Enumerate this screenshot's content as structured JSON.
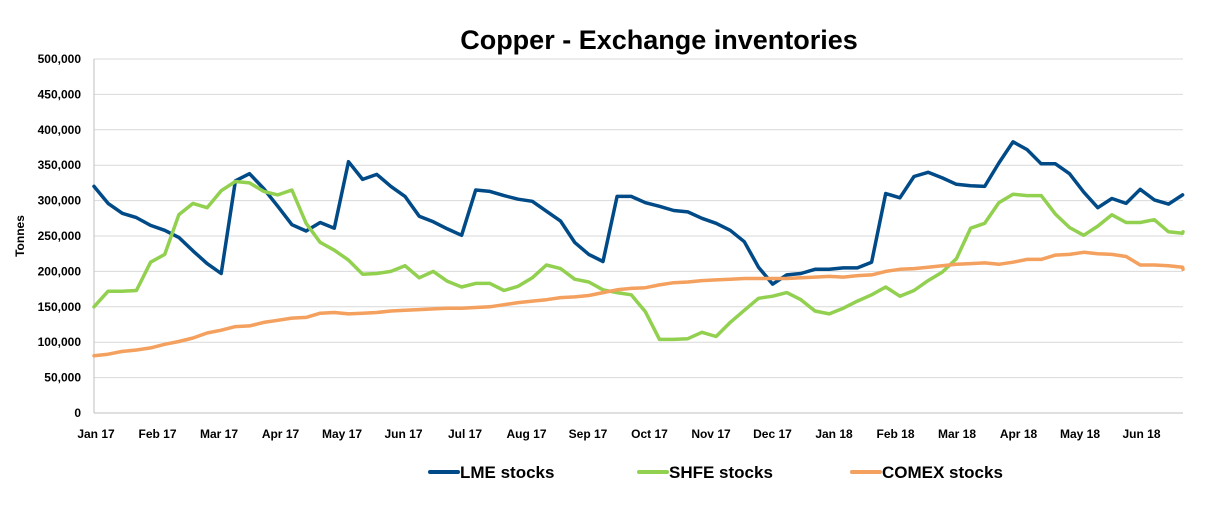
{
  "chart_data": {
    "type": "line",
    "title": "Copper - Exchange inventories",
    "xlabel": "",
    "ylabel": "Tonnes",
    "ylim": [
      0,
      500000
    ],
    "yticks": [
      0,
      50000,
      100000,
      150000,
      200000,
      250000,
      300000,
      350000,
      400000,
      450000,
      500000
    ],
    "ytick_labels": [
      "0",
      "50,000",
      "100,000",
      "150,000",
      "200,000",
      "250,000",
      "300,000",
      "350,000",
      "400,000",
      "450,000",
      "500,000"
    ],
    "x_tick_labels": [
      "Jan 17",
      "Feb 17",
      "Mar 17",
      "Apr 17",
      "May 17",
      "Jun 17",
      "Jul 17",
      "Aug 17",
      "Sep 17",
      "Oct 17",
      "Nov 17",
      "Dec 17",
      "Jan 18",
      "Feb 18",
      "Mar 18",
      "Apr 18",
      "May 18",
      "Jun 18"
    ],
    "grid": true,
    "legend": "bottom",
    "series": [
      {
        "name": "LME stocks",
        "color": "#004b87",
        "values": [
          320000,
          296000,
          282000,
          276000,
          265000,
          258000,
          248000,
          229000,
          211000,
          197000,
          328000,
          338000,
          317000,
          292000,
          266000,
          257000,
          269000,
          261000,
          355000,
          330000,
          337000,
          320000,
          306000,
          278000,
          270000,
          260000,
          251000,
          315000,
          313000,
          307000,
          302000,
          299000,
          285000,
          271000,
          241000,
          224000,
          214000,
          306000,
          306000,
          297000,
          292000,
          286000,
          284000,
          275000,
          268000,
          258000,
          242000,
          206000,
          182000,
          195000,
          197000,
          203000,
          203000,
          205000,
          205000,
          213000,
          310000,
          304000,
          334000,
          340000,
          332000,
          323000,
          321000,
          320000,
          353000,
          383000,
          372000,
          352000,
          352000,
          338000,
          312000,
          290000,
          303000,
          296000,
          316000,
          301000,
          295000,
          308000
        ]
      },
      {
        "name": "SHFE stocks",
        "color": "#92d050",
        "values": [
          150000,
          172000,
          172000,
          173000,
          213000,
          224000,
          280000,
          296000,
          290000,
          314000,
          327000,
          325000,
          313000,
          308000,
          315000,
          268000,
          241000,
          230000,
          216000,
          196000,
          197000,
          200000,
          208000,
          191000,
          200000,
          186000,
          178000,
          183000,
          183000,
          173000,
          179000,
          191000,
          209000,
          204000,
          189000,
          185000,
          174000,
          170000,
          167000,
          143000,
          104000,
          104000,
          105000,
          114000,
          108000,
          128000,
          145000,
          162000,
          165000,
          170000,
          160000,
          144000,
          140000,
          148000,
          158000,
          167000,
          178000,
          165000,
          173000,
          187000,
          199000,
          218000,
          261000,
          268000,
          297000,
          309000,
          307000,
          307000,
          281000,
          262000,
          251000,
          264000,
          280000,
          269000,
          269000,
          273000,
          256000,
          254000,
          256000
        ]
      },
      {
        "name": "COMEX stocks",
        "color": "#f4a05e",
        "values": [
          81000,
          83000,
          87000,
          89000,
          92000,
          97000,
          101000,
          106000,
          113000,
          117000,
          122000,
          123000,
          128000,
          131000,
          134000,
          135000,
          141000,
          142000,
          140000,
          141000,
          142000,
          144000,
          145000,
          146000,
          147000,
          148000,
          148000,
          149000,
          150000,
          153000,
          156000,
          158000,
          160000,
          163000,
          164000,
          166000,
          170000,
          174000,
          176000,
          177000,
          181000,
          184000,
          185000,
          187000,
          188000,
          189000,
          190000,
          190000,
          190000,
          190000,
          191000,
          192000,
          193000,
          192000,
          194000,
          195000,
          200000,
          203000,
          204000,
          206000,
          208000,
          210000,
          211000,
          212000,
          210000,
          213000,
          217000,
          217000,
          223000,
          224000,
          227000,
          225000,
          224000,
          221000,
          209000,
          209000,
          208000,
          206000,
          203000
        ]
      }
    ]
  }
}
